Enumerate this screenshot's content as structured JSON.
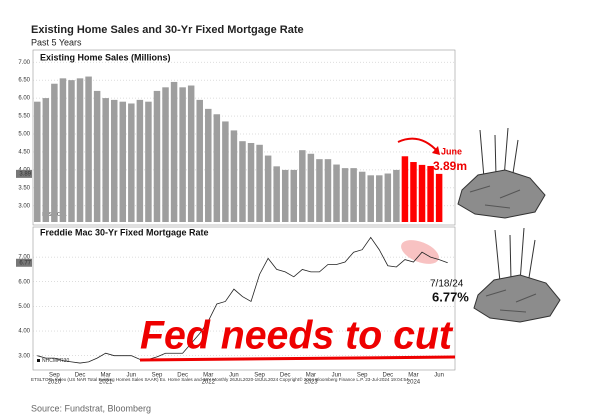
{
  "header": {
    "title": "Existing Home Sales and 30-Yr Fixed Mortgage Rate",
    "subtitle": "Past 5 Years"
  },
  "chart_data": [
    {
      "type": "bar",
      "title": "Existing Home Sales (Millions)",
      "legend": "ETSLTOTL",
      "values": [
        5.9,
        6.0,
        6.4,
        6.55,
        6.5,
        6.55,
        6.6,
        6.2,
        6.0,
        5.95,
        5.9,
        5.85,
        5.95,
        5.9,
        6.2,
        6.3,
        6.45,
        6.3,
        6.35,
        5.95,
        5.7,
        5.55,
        5.35,
        5.1,
        4.8,
        4.75,
        4.7,
        4.4,
        4.1,
        4.0,
        4.0,
        4.55,
        4.45,
        4.3,
        4.3,
        4.15,
        4.05,
        4.05,
        3.95,
        3.85,
        3.85,
        3.9,
        4.0,
        4.38,
        4.22,
        4.14,
        4.11,
        3.89
      ],
      "colors": [
        "#9e9e9e",
        "#9e9e9e",
        "#9e9e9e",
        "#9e9e9e",
        "#9e9e9e",
        "#9e9e9e",
        "#9e9e9e",
        "#9e9e9e",
        "#9e9e9e",
        "#9e9e9e",
        "#9e9e9e",
        "#9e9e9e",
        "#9e9e9e",
        "#9e9e9e",
        "#9e9e9e",
        "#9e9e9e",
        "#9e9e9e",
        "#9e9e9e",
        "#9e9e9e",
        "#9e9e9e",
        "#9e9e9e",
        "#9e9e9e",
        "#9e9e9e",
        "#9e9e9e",
        "#9e9e9e",
        "#9e9e9e",
        "#9e9e9e",
        "#9e9e9e",
        "#9e9e9e",
        "#9e9e9e",
        "#9e9e9e",
        "#9e9e9e",
        "#9e9e9e",
        "#9e9e9e",
        "#9e9e9e",
        "#9e9e9e",
        "#9e9e9e",
        "#9e9e9e",
        "#9e9e9e",
        "#9e9e9e",
        "#9e9e9e",
        "#9e9e9e",
        "#9e9e9e",
        "#ff0000",
        "#ff0000",
        "#ff0000",
        "#ff0000",
        "#ff0000"
      ],
      "ylim": [
        2.55,
        7.2
      ],
      "yticks": [
        {
          "value": 3,
          "label": "3.00"
        },
        {
          "value": 3.5,
          "label": "3.50"
        },
        {
          "value": 4,
          "label": "4.00"
        },
        {
          "value": 4.5,
          "label": "4.50"
        },
        {
          "value": 5,
          "label": "5.00"
        },
        {
          "value": 5.5,
          "label": "5.50"
        },
        {
          "value": 6,
          "label": "6.00"
        },
        {
          "value": 6.5,
          "label": "6.50"
        },
        {
          "value": 7,
          "label": "7.00"
        }
      ],
      "grid": true,
      "annotations": [
        "June",
        "3.89m"
      ]
    },
    {
      "type": "line",
      "title": "Freddie Mac 30-Yr Fixed Mortgage Rate",
      "legend": "NHCMFR30",
      "color": "#222222",
      "categories": [
        null,
        null,
        "Sep",
        null,
        null,
        "Dec",
        null,
        null,
        "Mar",
        null,
        null,
        "Jun",
        null,
        null,
        "Sep",
        null,
        null,
        "Dec",
        null,
        null,
        "Mar",
        null,
        null,
        "Jun",
        null,
        null,
        "Sep",
        null,
        null,
        "Dec",
        null,
        null,
        "Mar",
        null,
        null,
        "Jun",
        null,
        null,
        "Sep",
        null,
        null,
        "Dec",
        null,
        null,
        "Mar",
        null,
        null,
        "Jun",
        null
      ],
      "years": [
        "2020",
        "2021",
        "2022",
        "2023",
        "2024"
      ],
      "values": [
        3.0,
        2.9,
        2.9,
        2.8,
        2.75,
        2.7,
        2.75,
        2.9,
        3.1,
        3.0,
        3.0,
        3.0,
        2.85,
        2.85,
        2.95,
        3.1,
        3.1,
        3.1,
        3.5,
        3.9,
        4.4,
        5.1,
        5.2,
        5.7,
        5.4,
        5.2,
        6.3,
        6.95,
        6.5,
        6.4,
        6.2,
        6.5,
        6.4,
        6.4,
        6.7,
        6.7,
        6.8,
        7.2,
        7.3,
        7.8,
        7.3,
        6.65,
        6.6,
        6.9,
        6.8,
        7.2,
        7.0,
        6.9,
        6.77
      ],
      "ylim": [
        2.5,
        8.1
      ],
      "yticks": [
        {
          "value": 3,
          "label": "3.00"
        },
        {
          "value": 4,
          "label": "4.00"
        },
        {
          "value": 5,
          "label": "5.00"
        },
        {
          "value": 6,
          "label": "6.00"
        },
        {
          "value": 7,
          "label": "7.00"
        }
      ],
      "grid": true,
      "annotations": [
        "7/18/24",
        "6.77%",
        "Fed needs to cut"
      ]
    }
  ],
  "footer": "ETSLTOTL Index (US NAR Total Existing Homes Sales SAAR) Ex. Home Sales and 30Y  Monthly 26JUL2020-18JUL2024      Copyright© 2024 Bloomberg Finance L.P.      23-Jul-2024 19:04:54",
  "source": "Source: Fundstrat, Bloomberg"
}
